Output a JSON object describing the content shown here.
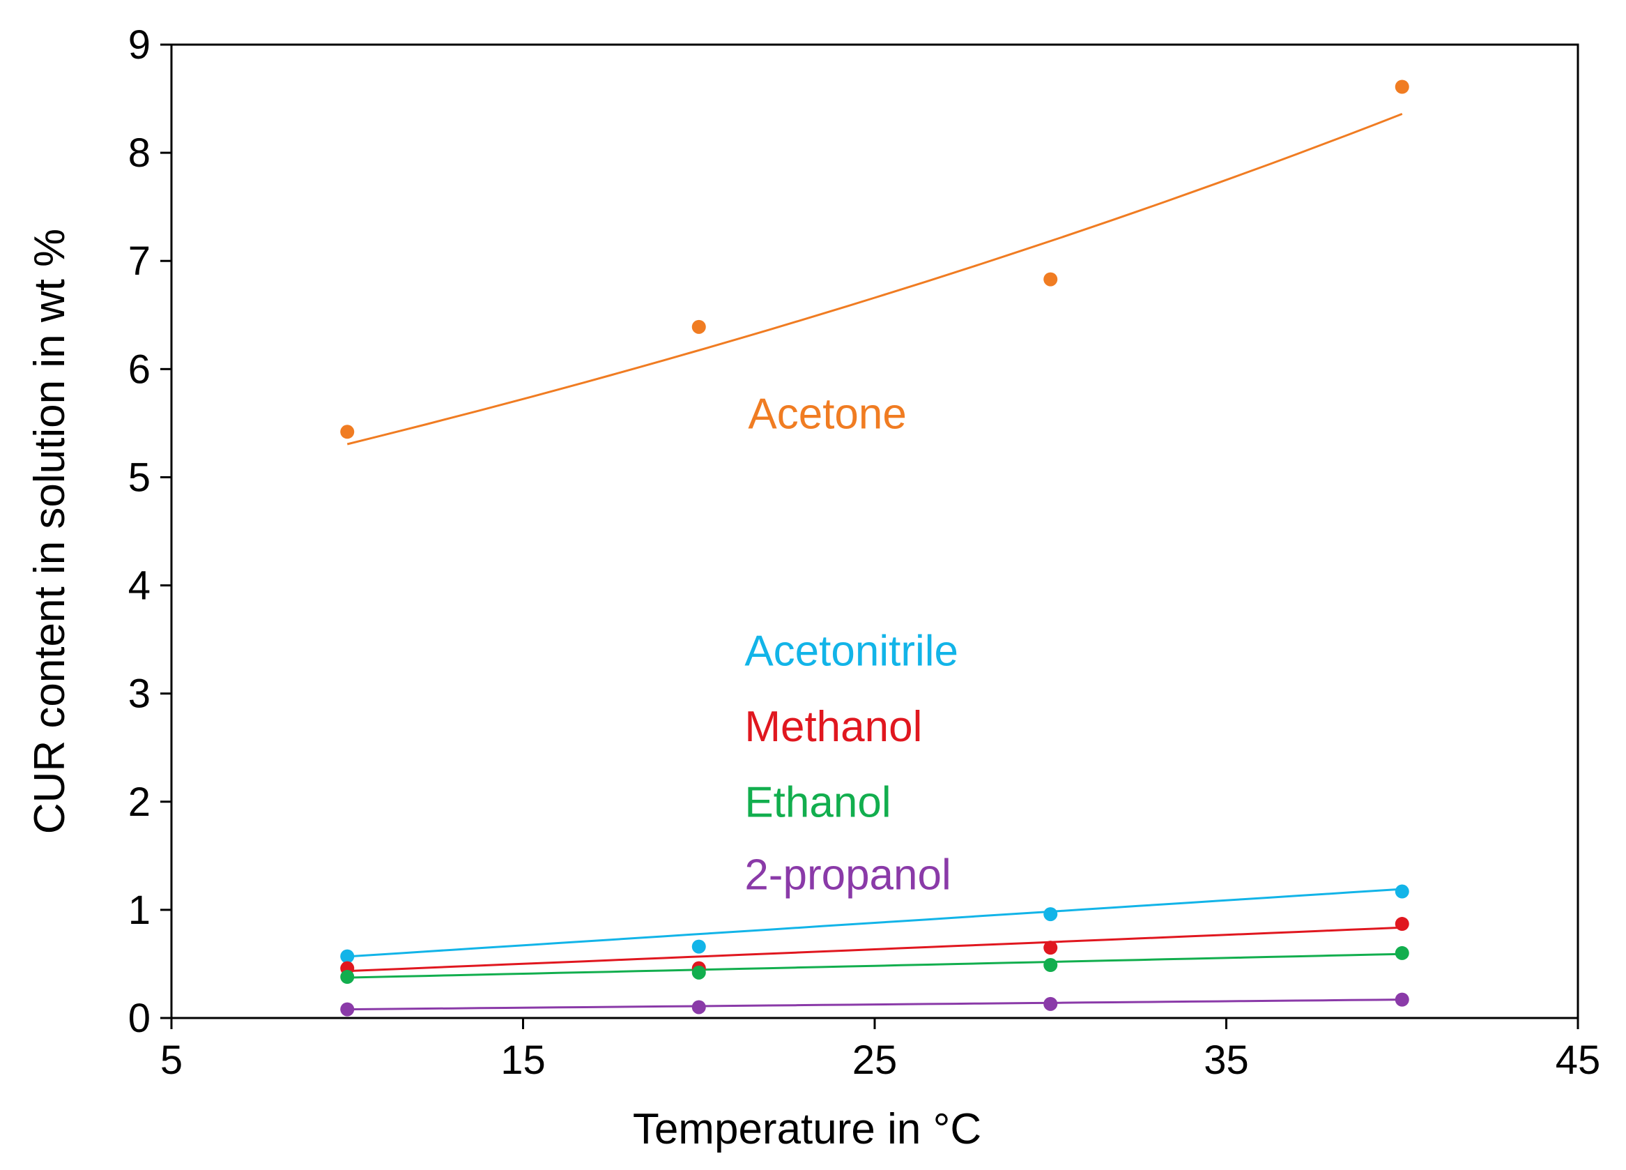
{
  "chart_data": {
    "type": "scatter",
    "title": "",
    "xlabel": "Temperature in °C",
    "ylabel": "CUR content in solution in wt %",
    "xlim": [
      5,
      45
    ],
    "ylim": [
      0,
      9
    ],
    "xticks": [
      5,
      15,
      25,
      35,
      45
    ],
    "yticks": [
      0,
      1,
      2,
      3,
      4,
      5,
      6,
      7,
      8,
      9
    ],
    "grid": false,
    "legend": "inline text labels",
    "series": [
      {
        "name": "Acetone",
        "color": "#f07c22",
        "x": [
          10,
          20,
          30,
          40
        ],
        "values": [
          5.42,
          6.39,
          6.83,
          8.61
        ],
        "fit": {
          "type": "exponential",
          "a": 4.56,
          "b": 0.01515
        }
      },
      {
        "name": "Acetonitrile",
        "color": "#12b4e8",
        "x": [
          10,
          20,
          30,
          40
        ],
        "values": [
          0.57,
          0.66,
          0.96,
          1.17
        ],
        "fit": {
          "type": "linear",
          "slope": 0.0208,
          "intercept": 0.36
        }
      },
      {
        "name": "Methanol",
        "color": "#e0171f",
        "x": [
          10,
          20,
          30,
          40
        ],
        "values": [
          0.46,
          0.46,
          0.65,
          0.87
        ],
        "fit": {
          "type": "linear",
          "slope": 0.0134,
          "intercept": 0.3
        }
      },
      {
        "name": "Ethanol",
        "color": "#12ae4e",
        "x": [
          10,
          20,
          30,
          40
        ],
        "values": [
          0.38,
          0.42,
          0.49,
          0.6
        ],
        "fit": {
          "type": "linear",
          "slope": 0.0073,
          "intercept": 0.3
        }
      },
      {
        "name": "2-propanol",
        "color": "#8a3aa8",
        "x": [
          10,
          20,
          30,
          40
        ],
        "values": [
          0.08,
          0.1,
          0.13,
          0.17
        ],
        "fit": {
          "type": "linear",
          "slope": 0.003,
          "intercept": 0.05
        }
      }
    ]
  }
}
